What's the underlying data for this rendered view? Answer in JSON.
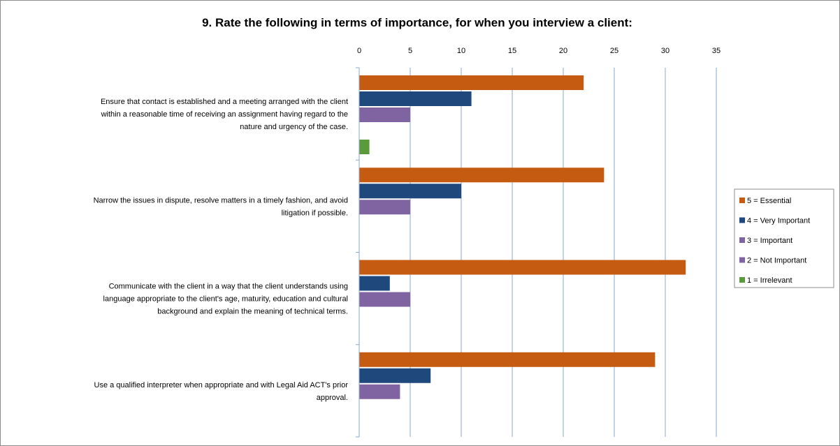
{
  "chart_data": {
    "type": "bar",
    "orientation": "horizontal",
    "title": "9. Rate the following in terms of importance, for when you interview a client:",
    "xlim": [
      0,
      35
    ],
    "xticks": [
      0,
      5,
      10,
      15,
      20,
      25,
      30,
      35
    ],
    "grid": "vertical",
    "legend_position": "right",
    "categories": [
      [
        "Ensure that contact is established and a meeting arranged with the client",
        "within a reasonable time of receiving an assignment having regard to the",
        "nature and urgency of the case."
      ],
      [
        "Narrow the issues in dispute, resolve matters in a timely fashion, and avoid",
        "litigation if possible."
      ],
      [
        "Communicate with the client in a way that the client understands using",
        "language appropriate to the client's age, maturity, education and cultural",
        "background and explain the meaning of technical terms."
      ],
      [
        "Use a qualified interpreter when appropriate and with Legal Aid ACT's prior",
        "approval."
      ]
    ],
    "series": [
      {
        "name": "5 = Essential",
        "color": "#c55a11",
        "values": [
          22,
          24,
          32,
          29
        ]
      },
      {
        "name": "4 = Very Important",
        "color": "#1f497d",
        "values": [
          11,
          10,
          3,
          7
        ]
      },
      {
        "name": "3 = Important",
        "color": "#8064a2",
        "values": [
          5,
          5,
          5,
          4
        ]
      },
      {
        "name": "2 = Not Important",
        "color": "#8064a2",
        "values": [
          0,
          0,
          0,
          0
        ]
      },
      {
        "name": "1 = Irrelevant",
        "color": "#5b9a3a",
        "values": [
          1,
          0,
          0,
          0
        ]
      }
    ]
  }
}
